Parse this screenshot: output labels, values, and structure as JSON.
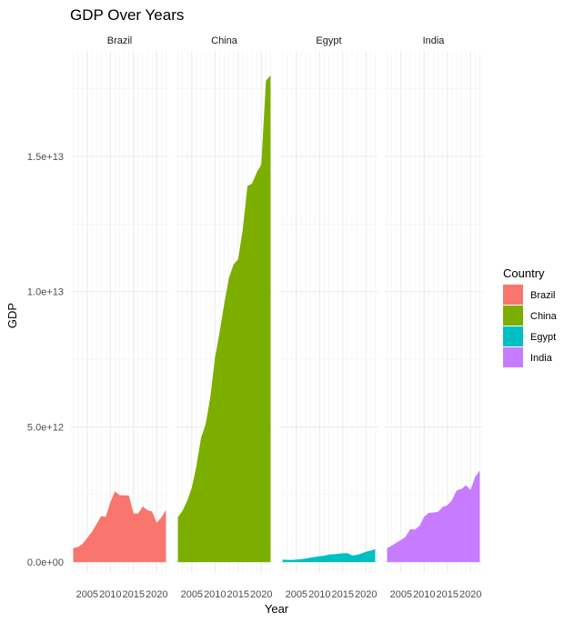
{
  "chart_data": {
    "type": "area",
    "title": "GDP Over Years",
    "xlabel": "Year",
    "ylabel": "GDP",
    "facets": [
      "Brazil",
      "China",
      "Egypt",
      "India"
    ],
    "x_ticks": [
      2005,
      2010,
      2015,
      2020
    ],
    "x_tick_labels": [
      "2005",
      "2010",
      "2015",
      "2020"
    ],
    "y_ticks": [
      0,
      5000000000000.0,
      10000000000000.0,
      15000000000000.0
    ],
    "y_tick_labels": [
      "0.0e+00",
      "5.0e+12",
      "1.0e+13",
      "1.5e+13"
    ],
    "xlim": [
      2001.5,
      2022.5
    ],
    "ylim": [
      -400000000000.0,
      18900000000000.0
    ],
    "grid": true,
    "legend": {
      "title": "Country",
      "position": "right"
    },
    "series": [
      {
        "name": "Brazil",
        "color": "#F8766D",
        "x": [
          2002,
          2003,
          2004,
          2005,
          2006,
          2007,
          2008,
          2009,
          2010,
          2011,
          2012,
          2013,
          2014,
          2015,
          2016,
          2017,
          2018,
          2019,
          2020,
          2021,
          2022
        ],
        "values": [
          510000000000.0,
          560000000000.0,
          670000000000.0,
          890000000000.0,
          1110000000000.0,
          1400000000000.0,
          1700000000000.0,
          1670000000000.0,
          2210000000000.0,
          2620000000000.0,
          2470000000000.0,
          2470000000000.0,
          2460000000000.0,
          1800000000000.0,
          1800000000000.0,
          2060000000000.0,
          1920000000000.0,
          1870000000000.0,
          1450000000000.0,
          1650000000000.0,
          1920000000000.0
        ]
      },
      {
        "name": "China",
        "color": "#7CAE00",
        "x": [
          2002,
          2003,
          2004,
          2005,
          2006,
          2007,
          2008,
          2009,
          2010,
          2011,
          2012,
          2013,
          2014,
          2015,
          2016,
          2017,
          2018,
          2019,
          2020,
          2021,
          2022
        ],
        "values": [
          1660000000000.0,
          1900000000000.0,
          2260000000000.0,
          2750000000000.0,
          3550000000000.0,
          4600000000000.0,
          5100000000000.0,
          6100000000000.0,
          7550000000000.0,
          8500000000000.0,
          9550000000000.0,
          10500000000000.0,
          11000000000000.0,
          11200000000000.0,
          12300000000000.0,
          13900000000000.0,
          14000000000000.0,
          14400000000000.0,
          14700000000000.0,
          17800000000000.0,
          18000000000000.0
        ]
      },
      {
        "name": "Egypt",
        "color": "#00BFC4",
        "x": [
          2002,
          2003,
          2004,
          2005,
          2006,
          2007,
          2008,
          2009,
          2010,
          2011,
          2012,
          2013,
          2014,
          2015,
          2016,
          2017,
          2018,
          2019,
          2020,
          2021,
          2022
        ],
        "values": [
          90000000000.0,
          85000000000.0,
          80000000000.0,
          90000000000.0,
          107000000000.0,
          130000000000.0,
          162000000000.0,
          189000000000.0,
          218000000000.0,
          236000000000.0,
          279000000000.0,
          288000000000.0,
          305000000000.0,
          329000000000.0,
          332000000000.0,
          248000000000.0,
          263000000000.0,
          318000000000.0,
          383000000000.0,
          424000000000.0,
          477000000000.0
        ]
      },
      {
        "name": "India",
        "color": "#C77CFF",
        "x": [
          2002,
          2003,
          2004,
          2005,
          2006,
          2007,
          2008,
          2009,
          2010,
          2011,
          2012,
          2013,
          2014,
          2015,
          2016,
          2017,
          2018,
          2019,
          2020,
          2021,
          2022
        ],
        "values": [
          510000000000.0,
          610000000000.0,
          720000000000.0,
          820000000000.0,
          940000000000.0,
          1220000000000.0,
          1200000000000.0,
          1340000000000.0,
          1680000000000.0,
          1820000000000.0,
          1830000000000.0,
          1860000000000.0,
          2040000000000.0,
          2100000000000.0,
          2290000000000.0,
          2650000000000.0,
          2700000000000.0,
          2840000000000.0,
          2670000000000.0,
          3150000000000.0,
          3390000000000.0
        ]
      }
    ]
  }
}
